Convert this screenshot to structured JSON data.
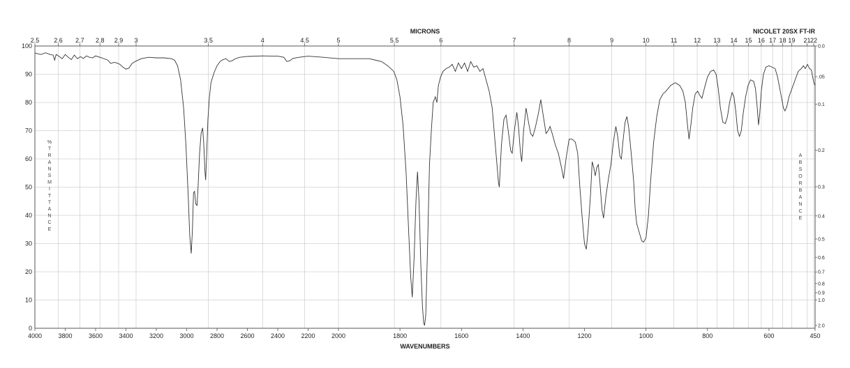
{
  "header": {
    "top_axis_label": "MICRONS",
    "instrument": "NICOLET 20SX FT-IR",
    "bottom_axis_label": "WAVENUMBERS",
    "left_axis_label": "%\nT\nR\nA\nN\nS\nM\nI\nT\nT\nA\nN\nC\nE",
    "right_axis_label": "A\nB\nS\nO\nR\nB\nA\nN\nC\nE"
  },
  "chart_data": {
    "type": "line",
    "title": "",
    "xlabel": "WAVENUMBERS",
    "x2label": "MICRONS",
    "ylabel": "% TRANSMITTANCE",
    "y2label": "ABSORBANCE",
    "xlim": [
      4000,
      450
    ],
    "ylim": [
      0,
      100
    ],
    "x_ticks": [
      4000,
      3800,
      3600,
      3400,
      3200,
      3000,
      2800,
      2600,
      2400,
      2200,
      2000,
      1800,
      1600,
      1400,
      1200,
      1000,
      800,
      600,
      450
    ],
    "y_ticks": [
      0,
      10,
      20,
      30,
      40,
      50,
      60,
      70,
      80,
      90,
      100
    ],
    "micron_ticks": [
      {
        "v": 2.5,
        "label": "2.5"
      },
      {
        "v": 2.6,
        "label": "2.6"
      },
      {
        "v": 2.7,
        "label": "2.7"
      },
      {
        "v": 2.8,
        "label": "2.8"
      },
      {
        "v": 2.9,
        "label": "2.9"
      },
      {
        "v": 3,
        "label": "3"
      },
      {
        "v": 3.5,
        "label": "3.5"
      },
      {
        "v": 4,
        "label": "4"
      },
      {
        "v": 4.5,
        "label": "4.5"
      },
      {
        "v": 5,
        "label": "5"
      },
      {
        "v": 5.5,
        "label": "5.5"
      },
      {
        "v": 6,
        "label": "6"
      },
      {
        "v": 7,
        "label": "7"
      },
      {
        "v": 8,
        "label": "8"
      },
      {
        "v": 9,
        "label": "9"
      },
      {
        "v": 10,
        "label": "10"
      },
      {
        "v": 11,
        "label": "11"
      },
      {
        "v": 12,
        "label": "12"
      },
      {
        "v": 13,
        "label": "13"
      },
      {
        "v": 14,
        "label": "14"
      },
      {
        "v": 15,
        "label": "15"
      },
      {
        "v": 16,
        "label": "16"
      },
      {
        "v": 17,
        "label": "17"
      },
      {
        "v": 18,
        "label": "18"
      },
      {
        "v": 19,
        "label": "19"
      },
      {
        "v": 21,
        "label": "21"
      },
      {
        "v": 22,
        "label": "22"
      }
    ],
    "absorbance_ticks": [
      {
        "v": 0.0,
        "label": "0.0"
      },
      {
        "v": 0.05,
        "label": ".05"
      },
      {
        "v": 0.1,
        "label": "0.1"
      },
      {
        "v": 0.2,
        "label": "0.2"
      },
      {
        "v": 0.3,
        "label": "0.3"
      },
      {
        "v": 0.4,
        "label": "0.4"
      },
      {
        "v": 0.5,
        "label": "0.5"
      },
      {
        "v": 0.6,
        "label": "0.6"
      },
      {
        "v": 0.7,
        "label": "0.7"
      },
      {
        "v": 0.8,
        "label": "0.8"
      },
      {
        "v": 0.9,
        "label": "0.9"
      },
      {
        "v": 1.0,
        "label": "1.0"
      },
      {
        "v": 2.0,
        "label": "2.0"
      }
    ],
    "grid": true,
    "series": [
      {
        "color": "#333333",
        "points": [
          [
            4000,
            97.5
          ],
          [
            3960,
            97.0
          ],
          [
            3930,
            97.6
          ],
          [
            3900,
            97.0
          ],
          [
            3880,
            96.8
          ],
          [
            3870,
            95.0
          ],
          [
            3860,
            97.0
          ],
          [
            3840,
            96.3
          ],
          [
            3820,
            95.5
          ],
          [
            3800,
            97.0
          ],
          [
            3780,
            96.0
          ],
          [
            3760,
            95.2
          ],
          [
            3740,
            96.8
          ],
          [
            3720,
            95.5
          ],
          [
            3700,
            96.2
          ],
          [
            3680,
            95.6
          ],
          [
            3660,
            96.5
          ],
          [
            3640,
            96.0
          ],
          [
            3620,
            95.8
          ],
          [
            3600,
            96.5
          ],
          [
            3560,
            95.8
          ],
          [
            3520,
            95.0
          ],
          [
            3500,
            93.8
          ],
          [
            3480,
            94.2
          ],
          [
            3460,
            94.0
          ],
          [
            3440,
            93.5
          ],
          [
            3420,
            92.5
          ],
          [
            3400,
            91.8
          ],
          [
            3380,
            92.2
          ],
          [
            3360,
            93.8
          ],
          [
            3340,
            94.5
          ],
          [
            3300,
            95.5
          ],
          [
            3250,
            96.0
          ],
          [
            3200,
            95.8
          ],
          [
            3150,
            95.8
          ],
          [
            3100,
            95.5
          ],
          [
            3080,
            95.0
          ],
          [
            3060,
            93.0
          ],
          [
            3040,
            88.0
          ],
          [
            3020,
            78.0
          ],
          [
            3005,
            65.0
          ],
          [
            2990,
            47.0
          ],
          [
            2980,
            33.0
          ],
          [
            2970,
            26.5
          ],
          [
            2962,
            35.0
          ],
          [
            2955,
            48.0
          ],
          [
            2948,
            48.5
          ],
          [
            2940,
            44.0
          ],
          [
            2932,
            43.5
          ],
          [
            2925,
            50.0
          ],
          [
            2915,
            62.0
          ],
          [
            2905,
            69.0
          ],
          [
            2895,
            71.0
          ],
          [
            2888,
            66.0
          ],
          [
            2880,
            56.0
          ],
          [
            2875,
            52.5
          ],
          [
            2868,
            62.0
          ],
          [
            2860,
            74.0
          ],
          [
            2850,
            82.0
          ],
          [
            2840,
            87.0
          ],
          [
            2820,
            90.5
          ],
          [
            2800,
            93.0
          ],
          [
            2780,
            94.5
          ],
          [
            2760,
            95.2
          ],
          [
            2740,
            95.5
          ],
          [
            2720,
            94.5
          ],
          [
            2700,
            94.8
          ],
          [
            2680,
            95.5
          ],
          [
            2650,
            96.0
          ],
          [
            2600,
            96.3
          ],
          [
            2500,
            96.5
          ],
          [
            2400,
            96.4
          ],
          [
            2360,
            96.0
          ],
          [
            2340,
            94.5
          ],
          [
            2320,
            94.8
          ],
          [
            2300,
            95.6
          ],
          [
            2260,
            96.0
          ],
          [
            2200,
            96.4
          ],
          [
            2100,
            96.0
          ],
          [
            2000,
            95.5
          ],
          [
            1950,
            95.5
          ],
          [
            1900,
            95.5
          ],
          [
            1880,
            95.0
          ],
          [
            1860,
            94.5
          ],
          [
            1840,
            93.0
          ],
          [
            1820,
            91.0
          ],
          [
            1810,
            88.0
          ],
          [
            1800,
            82.0
          ],
          [
            1790,
            72.0
          ],
          [
            1780,
            55.0
          ],
          [
            1772,
            35.0
          ],
          [
            1765,
            18.0
          ],
          [
            1760,
            11.0
          ],
          [
            1754,
            25.0
          ],
          [
            1748,
            45.0
          ],
          [
            1743,
            55.5
          ],
          [
            1738,
            45.0
          ],
          [
            1732,
            22.0
          ],
          [
            1727,
            8.0
          ],
          [
            1723,
            2.0
          ],
          [
            1720,
            1.0
          ],
          [
            1716,
            5.0
          ],
          [
            1710,
            30.0
          ],
          [
            1704,
            58.0
          ],
          [
            1698,
            70.0
          ],
          [
            1692,
            80.0
          ],
          [
            1685,
            82.0
          ],
          [
            1680,
            80.0
          ],
          [
            1675,
            86.0
          ],
          [
            1668,
            89.0
          ],
          [
            1660,
            91.0
          ],
          [
            1650,
            92.0
          ],
          [
            1640,
            92.5
          ],
          [
            1630,
            93.5
          ],
          [
            1620,
            91.0
          ],
          [
            1610,
            94.0
          ],
          [
            1600,
            92.0
          ],
          [
            1590,
            94.0
          ],
          [
            1580,
            91.0
          ],
          [
            1570,
            94.5
          ],
          [
            1560,
            92.5
          ],
          [
            1550,
            93.0
          ],
          [
            1540,
            91.0
          ],
          [
            1530,
            92.0
          ],
          [
            1520,
            88.0
          ],
          [
            1510,
            84.0
          ],
          [
            1500,
            78.0
          ],
          [
            1490,
            65.0
          ],
          [
            1480,
            52.0
          ],
          [
            1477,
            50.0
          ],
          [
            1470,
            65.0
          ],
          [
            1462,
            74.0
          ],
          [
            1455,
            75.5
          ],
          [
            1448,
            70.0
          ],
          [
            1440,
            63.0
          ],
          [
            1435,
            62.0
          ],
          [
            1428,
            70.0
          ],
          [
            1420,
            76.5
          ],
          [
            1415,
            72.0
          ],
          [
            1408,
            62.0
          ],
          [
            1404,
            59.0
          ],
          [
            1398,
            70.0
          ],
          [
            1390,
            78.0
          ],
          [
            1382,
            73.0
          ],
          [
            1375,
            69.0
          ],
          [
            1368,
            68.0
          ],
          [
            1360,
            71.0
          ],
          [
            1350,
            76.0
          ],
          [
            1342,
            81.0
          ],
          [
            1335,
            76.0
          ],
          [
            1325,
            69.0
          ],
          [
            1318,
            70.0
          ],
          [
            1312,
            71.5
          ],
          [
            1305,
            69.0
          ],
          [
            1295,
            65.0
          ],
          [
            1285,
            62.0
          ],
          [
            1275,
            57.0
          ],
          [
            1268,
            53.0
          ],
          [
            1260,
            60.0
          ],
          [
            1250,
            67.0
          ],
          [
            1240,
            67.0
          ],
          [
            1230,
            66.0
          ],
          [
            1222,
            62.0
          ],
          [
            1215,
            50.0
          ],
          [
            1208,
            40.0
          ],
          [
            1200,
            30.0
          ],
          [
            1194,
            28.0
          ],
          [
            1188,
            35.0
          ],
          [
            1180,
            48.0
          ],
          [
            1175,
            59.0
          ],
          [
            1170,
            57.0
          ],
          [
            1165,
            54.0
          ],
          [
            1160,
            57.0
          ],
          [
            1155,
            58.0
          ],
          [
            1150,
            52.0
          ],
          [
            1143,
            42.0
          ],
          [
            1138,
            39.0
          ],
          [
            1130,
            47.0
          ],
          [
            1122,
            53.0
          ],
          [
            1114,
            58.0
          ],
          [
            1106,
            66.0
          ],
          [
            1098,
            71.5
          ],
          [
            1092,
            68.0
          ],
          [
            1085,
            61.0
          ],
          [
            1080,
            60.0
          ],
          [
            1075,
            66.0
          ],
          [
            1068,
            73.0
          ],
          [
            1062,
            75.0
          ],
          [
            1056,
            71.0
          ],
          [
            1048,
            62.0
          ],
          [
            1040,
            52.0
          ],
          [
            1035,
            42.0
          ],
          [
            1030,
            37.0
          ],
          [
            1022,
            34.0
          ],
          [
            1014,
            31.0
          ],
          [
            1008,
            30.5
          ],
          [
            1000,
            32.0
          ],
          [
            992,
            40.0
          ],
          [
            985,
            52.0
          ],
          [
            975,
            66.0
          ],
          [
            965,
            75.0
          ],
          [
            955,
            81.0
          ],
          [
            945,
            83.0
          ],
          [
            935,
            84.0
          ],
          [
            920,
            86.0
          ],
          [
            905,
            87.0
          ],
          [
            890,
            86.0
          ],
          [
            880,
            84.0
          ],
          [
            872,
            80.0
          ],
          [
            865,
            72.0
          ],
          [
            860,
            67.0
          ],
          [
            854,
            72.0
          ],
          [
            848,
            78.0
          ],
          [
            840,
            83.0
          ],
          [
            832,
            84.0
          ],
          [
            825,
            82.5
          ],
          [
            818,
            81.5
          ],
          [
            810,
            85.0
          ],
          [
            800,
            89.0
          ],
          [
            790,
            91.0
          ],
          [
            780,
            91.5
          ],
          [
            772,
            90.0
          ],
          [
            765,
            85.0
          ],
          [
            758,
            78.0
          ],
          [
            750,
            73.0
          ],
          [
            742,
            72.5
          ],
          [
            735,
            75.0
          ],
          [
            728,
            80.0
          ],
          [
            720,
            83.5
          ],
          [
            714,
            82.0
          ],
          [
            708,
            77.0
          ],
          [
            702,
            70.0
          ],
          [
            696,
            68.0
          ],
          [
            690,
            70.0
          ],
          [
            684,
            76.0
          ],
          [
            676,
            82.0
          ],
          [
            668,
            86.0
          ],
          [
            660,
            88.0
          ],
          [
            650,
            87.5
          ],
          [
            644,
            85.0
          ],
          [
            638,
            78.0
          ],
          [
            634,
            72.0
          ],
          [
            630,
            76.0
          ],
          [
            625,
            84.0
          ],
          [
            618,
            90.0
          ],
          [
            610,
            92.5
          ],
          [
            600,
            93.0
          ],
          [
            590,
            92.5
          ],
          [
            580,
            92.0
          ],
          [
            572,
            89.0
          ],
          [
            565,
            85.0
          ],
          [
            558,
            81.0
          ],
          [
            553,
            78.0
          ],
          [
            548,
            77.0
          ],
          [
            542,
            78.5
          ],
          [
            535,
            82.0
          ],
          [
            525,
            85.0
          ],
          [
            515,
            88.0
          ],
          [
            505,
            91.0
          ],
          [
            495,
            92.0
          ],
          [
            488,
            93.0
          ],
          [
            482,
            92.0
          ],
          [
            475,
            93.5
          ],
          [
            468,
            92.0
          ],
          [
            462,
            91.5
          ],
          [
            458,
            89.0
          ],
          [
            454,
            87.0
          ],
          [
            450,
            86.0
          ]
        ]
      }
    ]
  }
}
